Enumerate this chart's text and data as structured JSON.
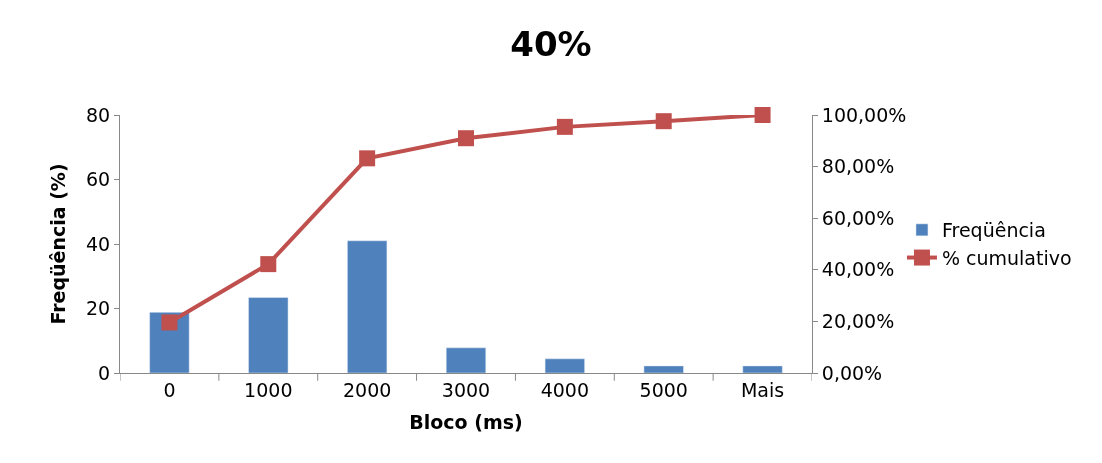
{
  "chart_data": {
    "type": "bar",
    "title": "40%",
    "xlabel": "Bloco (ms)",
    "ylabel": "Freqüência (%)",
    "categories": [
      "0",
      "1000",
      "2000",
      "3000",
      "4000",
      "5000",
      "Mais"
    ],
    "series": [
      {
        "name": "Freqüência",
        "color": "#4f81bd",
        "values": [
          18.8,
          23.4,
          41,
          7.8,
          4.4,
          2.2,
          2.2
        ]
      },
      {
        "name": "% cumulativo",
        "type": "line",
        "axis": "y2",
        "color": "#c0504d",
        "marker": "square",
        "values": [
          19.6,
          42.2,
          83.2,
          91,
          95.4,
          97.6,
          100
        ]
      }
    ],
    "ylim": [
      0,
      80
    ],
    "yticks": [
      0,
      20,
      40,
      60,
      80
    ],
    "y2lim": [
      0,
      100
    ],
    "y2ticks": [
      {
        "value": 0,
        "label": "0,00%"
      },
      {
        "value": 20,
        "label": "20,00%"
      },
      {
        "value": 40,
        "label": "40,00%"
      },
      {
        "value": 60,
        "label": "60,00%"
      },
      {
        "value": 80,
        "label": "80,00%"
      },
      {
        "value": 100,
        "label": "100,00%"
      }
    ],
    "legend": "right"
  }
}
